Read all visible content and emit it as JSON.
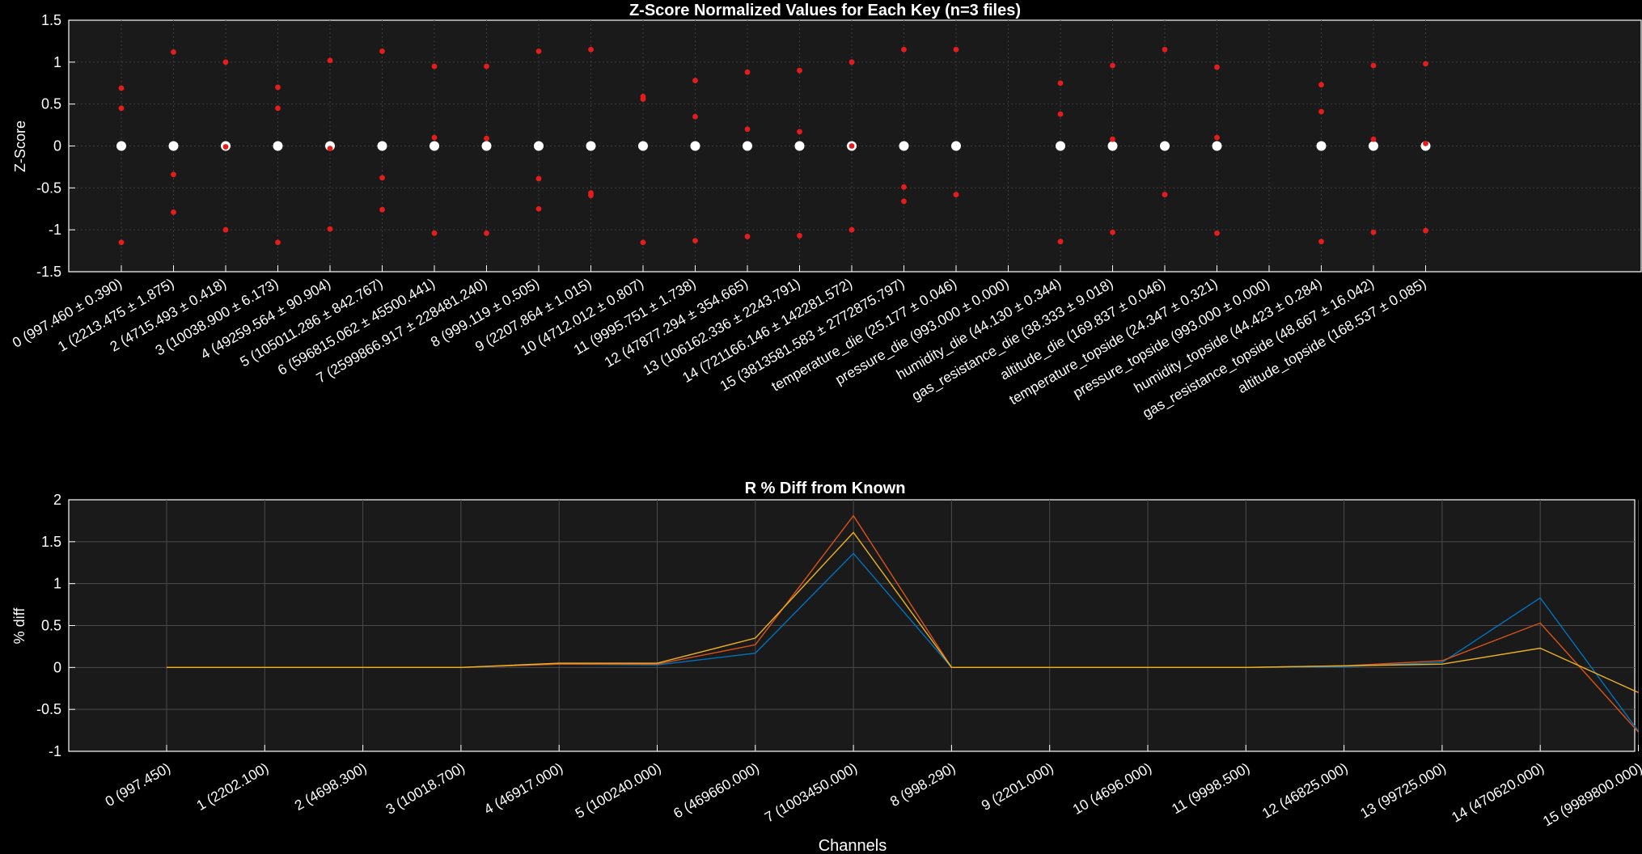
{
  "colors": {
    "figure_bg": "#000000",
    "axes_bg": "#1a1a1a",
    "grid": "#3c3c3c",
    "text": "#ffffff",
    "mean_marker": "#ffffff",
    "file_marker": "#e51c1c",
    "series": [
      "#0072bd",
      "#d95319",
      "#edb120"
    ]
  },
  "chart_data": [
    {
      "type": "scatter",
      "title": "Z-Score Normalized Values for Each Key (n=3 files)",
      "xlabel": "",
      "ylabel": "Z-Score",
      "ylim": [
        -1.5,
        1.5
      ],
      "yticks": [
        "1.5",
        "1",
        "0.5",
        "0",
        "-0.5",
        "-1",
        "-1.5"
      ],
      "ytick_values": [
        1.5,
        1,
        0.5,
        0,
        -0.5,
        -1,
        -1.5
      ],
      "grid": true,
      "categories": [
        "0 (997.460 ± 0.390)",
        "1 (2213.475 ± 1.875)",
        "2 (4715.493 ± 0.418)",
        "3 (10038.900 ± 6.173)",
        "4 (49259.564 ± 90.904)",
        "5 (105011.286 ± 842.767)",
        "6 (596815.062 ± 45500.441)",
        "7 (2599866.917 ± 228481.240)",
        "8 (999.119 ± 0.505)",
        "9 (2207.864 ± 1.015)",
        "10 (4712.012 ± 0.807)",
        "11 (9995.751 ± 1.738)",
        "12 (47877.294 ± 354.665)",
        "13 (106162.336 ± 2243.791)",
        "14 (721166.146 ± 142281.572)",
        "15 (3813581.583 ± 2772875.797)",
        "temperature_die (25.177 ± 0.046)",
        "pressure_die (993.000 ± 0.000)",
        "humidity_die (44.130 ± 0.344)",
        "gas_resistance_die (38.333 ± 9.018)",
        "altitude_die (169.837 ± 0.046)",
        "temperature_topside (24.347 ± 0.321)",
        "pressure_topside (993.000 ± 0.000)",
        "humidity_topside (44.423 ± 0.284)",
        "gas_resistance_topside (48.667 ± 16.042)",
        "altitude_topside (168.537 ± 0.085)"
      ],
      "mean_values": [
        0,
        0,
        0,
        0,
        0,
        0,
        0,
        0,
        0,
        0,
        0,
        0,
        0,
        0,
        0,
        0,
        0,
        null,
        0,
        0,
        0,
        0,
        null,
        0,
        0,
        0
      ],
      "file_values": [
        [
          0.69,
          0.45,
          -1.15
        ],
        [
          1.12,
          -0.34,
          -0.79
        ],
        [
          1.0,
          -0.01,
          -1.0
        ],
        [
          0.7,
          0.45,
          -1.15
        ],
        [
          1.02,
          -0.03,
          -0.99
        ],
        [
          1.13,
          -0.38,
          -0.76
        ],
        [
          0.95,
          0.1,
          -1.04
        ],
        [
          0.95,
          0.09,
          -1.04
        ],
        [
          1.13,
          -0.39,
          -0.75
        ],
        [
          1.15,
          -0.56,
          -0.59
        ],
        [
          0.59,
          0.56,
          -1.15
        ],
        [
          0.78,
          0.35,
          -1.13
        ],
        [
          0.88,
          0.2,
          -1.08
        ],
        [
          0.9,
          0.17,
          -1.07
        ],
        [
          1.0,
          0.0,
          -1.0
        ],
        [
          1.15,
          -0.49,
          -0.66
        ],
        [
          1.15,
          -0.58,
          -0.58
        ],
        [],
        [
          0.75,
          0.38,
          -1.14
        ],
        [
          0.96,
          0.08,
          -1.03
        ],
        [
          1.15,
          -0.58,
          -0.58
        ],
        [
          0.94,
          0.1,
          -1.04
        ],
        [],
        [
          0.73,
          0.41,
          -1.14
        ],
        [
          0.96,
          0.08,
          -1.03
        ],
        [
          0.98,
          0.03,
          -1.01
        ]
      ]
    },
    {
      "type": "line",
      "title": "R % Diff from Known",
      "xlabel": "Channels",
      "ylabel": "% diff",
      "ylim": [
        -1,
        2
      ],
      "yticks": [
        "2",
        "1.5",
        "1",
        "0.5",
        "0",
        "-0.5",
        "-1"
      ],
      "ytick_values": [
        2,
        1.5,
        1,
        0.5,
        0,
        -0.5,
        -1
      ],
      "grid": true,
      "categories": [
        "0 (997.450)",
        "1 (2202.100)",
        "2 (4698.300)",
        "3 (10018.700)",
        "4 (46917.000)",
        "5 (100240.000)",
        "6 (469660.000)",
        "7 (1003450.000)",
        "8 (998.290)",
        "9 (2201.000)",
        "10 (4696.000)",
        "11 (9998.500)",
        "12 (46825.000)",
        "13 (99725.000)",
        "14 (470620.000)",
        "15 (9989800.000)"
      ],
      "series": [
        {
          "values": [
            0,
            0,
            0,
            0,
            0.04,
            0.03,
            0.17,
            1.36,
            0,
            0,
            0,
            0,
            0.01,
            0.06,
            0.83,
            -0.76
          ]
        },
        {
          "values": [
            0,
            0,
            0,
            0,
            0.04,
            0.04,
            0.27,
            1.81,
            0,
            0,
            0,
            0,
            0.02,
            0.08,
            0.53,
            -0.77
          ]
        },
        {
          "values": [
            0,
            0,
            0,
            0,
            0.05,
            0.05,
            0.35,
            1.61,
            0,
            0,
            0,
            0,
            0.02,
            0.04,
            0.23,
            -0.3
          ]
        }
      ]
    }
  ]
}
